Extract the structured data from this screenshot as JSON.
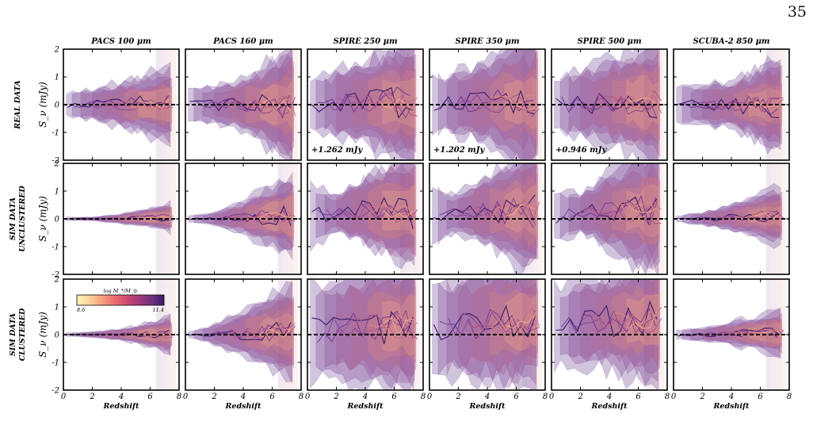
{
  "page_number": "35",
  "colorbar": {
    "label": "log M_*/M_⊙",
    "min_label": "8.6",
    "max_label": "11.4",
    "colors": [
      "#fcf5b8",
      "#fbd39a",
      "#f6a27f",
      "#ec6f6f",
      "#cf4a73",
      "#a03a7b",
      "#72307c",
      "#3a1b6a"
    ]
  },
  "chart_data": {
    "type": "area",
    "columns": [
      "PACS 100 μm",
      "PACS 160 μm",
      "SPIRE 250 μm",
      "SPIRE 350 μm",
      "SPIRE 500 μm",
      "SCUBA-2 850 μm"
    ],
    "rows": [
      "REAL DATA",
      "SIM DATA\nUNCLUSTERED",
      "SIM DATA\nCLUSTERED"
    ],
    "row_labels": [
      [
        "REAL DATA"
      ],
      [
        "SIM DATA",
        "UNCLUSTERED"
      ],
      [
        "SIM DATA",
        "CLUSTERED"
      ]
    ],
    "ylabel": "S_ν (mJy)",
    "xlabel": "Redshift",
    "xlim": [
      0,
      8
    ],
    "ylim": [
      -2,
      2
    ],
    "xticks": [
      0,
      2,
      4,
      6,
      8
    ],
    "yticks": [
      -2,
      -1,
      0,
      1,
      2
    ],
    "reference_line": 0,
    "offset_annotations": [
      {
        "row": 0,
        "col": 2,
        "text": "+1.262 mJy"
      },
      {
        "row": 0,
        "col": 3,
        "text": "+1.202 mJy"
      },
      {
        "row": 0,
        "col": 4,
        "text": "+0.946 mJy"
      }
    ],
    "approx_band_halfwidth_mJy": {
      "note_x": [
        0.5,
        2,
        4,
        6,
        7.5
      ],
      "values": [
        [
          [
            0.4,
            0.5,
            0.7,
            1.0,
            1.2
          ],
          [
            0.5,
            0.6,
            0.9,
            1.4,
            1.8
          ],
          [
            0.9,
            1.0,
            1.3,
            1.8,
            2.0
          ],
          [
            0.9,
            1.0,
            1.3,
            1.8,
            2.0
          ],
          [
            0.9,
            1.0,
            1.3,
            1.8,
            2.0
          ],
          [
            0.5,
            0.6,
            0.8,
            1.2,
            1.4
          ]
        ],
        [
          [
            0.05,
            0.05,
            0.15,
            0.3,
            0.5
          ],
          [
            0.1,
            0.2,
            0.5,
            1.0,
            1.4
          ],
          [
            0.9,
            0.6,
            1.2,
            1.7,
            2.0
          ],
          [
            0.9,
            0.6,
            1.2,
            1.7,
            2.0
          ],
          [
            0.9,
            0.6,
            1.2,
            1.7,
            2.0
          ],
          [
            0.1,
            0.2,
            0.4,
            0.7,
            0.9
          ]
        ],
        [
          [
            0.05,
            0.08,
            0.2,
            0.4,
            0.6
          ],
          [
            0.1,
            0.3,
            0.7,
            1.2,
            1.6
          ],
          [
            1.5,
            1.6,
            1.8,
            2.0,
            2.0
          ],
          [
            1.5,
            1.6,
            1.8,
            2.0,
            2.0
          ],
          [
            1.2,
            1.3,
            1.6,
            1.9,
            2.0
          ],
          [
            0.15,
            0.2,
            0.35,
            0.6,
            0.8
          ]
        ]
      ]
    },
    "approx_band_center_mJy": [
      [
        [
          0,
          0,
          0,
          0,
          0
        ],
        [
          0,
          0,
          0,
          0,
          0
        ],
        [
          0,
          0.05,
          0.1,
          0.1,
          0.05
        ],
        [
          0,
          0.05,
          0.1,
          0.1,
          0.05
        ],
        [
          0,
          0.05,
          0.1,
          0.1,
          0.05
        ],
        [
          0,
          0,
          0,
          0,
          0
        ]
      ],
      [
        [
          0,
          0,
          0,
          0.05,
          0.05
        ],
        [
          0,
          0,
          0.05,
          0.1,
          0.1
        ],
        [
          0.1,
          0.2,
          0.3,
          0.3,
          0.3
        ],
        [
          0.1,
          0.2,
          0.3,
          0.3,
          0.3
        ],
        [
          0.1,
          0.2,
          0.3,
          0.3,
          0.3
        ],
        [
          0,
          0,
          0.05,
          0.1,
          0.1
        ]
      ],
      [
        [
          0,
          0,
          0,
          0,
          0
        ],
        [
          0,
          0,
          0.05,
          0.1,
          0.1
        ],
        [
          0.1,
          0.2,
          0.3,
          0.3,
          0.35
        ],
        [
          0.2,
          0.3,
          0.4,
          0.45,
          0.5
        ],
        [
          0.3,
          0.4,
          0.5,
          0.5,
          0.55
        ],
        [
          0,
          0,
          0.05,
          0.05,
          0.05
        ]
      ]
    ]
  }
}
